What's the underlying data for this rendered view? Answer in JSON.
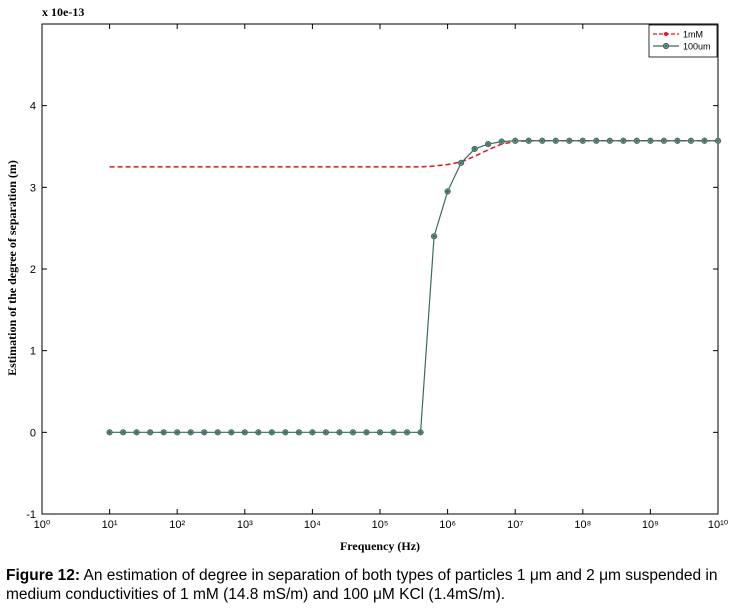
{
  "chart_data": {
    "type": "line",
    "multiplier_label": "x 10e-13",
    "xlabel": "Frequency (Hz)",
    "ylabel": "Estimation of the degree of separation (m)",
    "xscale": "log",
    "xlim": [
      1,
      10000000000
    ],
    "xticks": [
      {
        "value": 1,
        "label": "10⁰"
      },
      {
        "value": 10,
        "label": "10¹"
      },
      {
        "value": 100,
        "label": "10²"
      },
      {
        "value": 1000,
        "label": "10³"
      },
      {
        "value": 10000,
        "label": "10⁴"
      },
      {
        "value": 100000,
        "label": "10⁵"
      },
      {
        "value": 1000000,
        "label": "10⁶"
      },
      {
        "value": 10000000,
        "label": "10⁷"
      },
      {
        "value": 100000000,
        "label": "10⁸"
      },
      {
        "value": 1000000000,
        "label": "10⁹"
      },
      {
        "value": 10000000000,
        "label": "10¹⁰"
      }
    ],
    "ylim": [
      -1,
      5
    ],
    "yticks": [
      -1,
      0,
      1,
      2,
      3,
      4
    ],
    "legend": "upper right",
    "x": [
      10,
      15.85,
      25.12,
      39.81,
      63.1,
      100,
      158.5,
      251.2,
      398.1,
      631,
      1000,
      1585,
      2512,
      3981,
      6310,
      10000,
      15850,
      25120,
      39810,
      63100,
      100000,
      158500,
      251200,
      398100,
      631000,
      1000000,
      1585000,
      2512000,
      3981000,
      6310000,
      10000000,
      15850000,
      25120000,
      39810000,
      63100000,
      100000000,
      158500000,
      251200000,
      398100000,
      631000000,
      1000000000,
      1585000000,
      2512000000,
      3981000000,
      6310000000,
      10000000000
    ],
    "series": [
      {
        "name": "1mM",
        "color": "#e8141c",
        "line_style": "dashed",
        "marker": false,
        "values": [
          3.25,
          3.25,
          3.25,
          3.25,
          3.25,
          3.25,
          3.25,
          3.25,
          3.25,
          3.25,
          3.25,
          3.25,
          3.25,
          3.25,
          3.25,
          3.25,
          3.25,
          3.25,
          3.25,
          3.25,
          3.25,
          3.25,
          3.25,
          3.25,
          3.26,
          3.28,
          3.31,
          3.38,
          3.46,
          3.53,
          3.56,
          3.57,
          3.57,
          3.57,
          3.57,
          3.57,
          3.57,
          3.57,
          3.57,
          3.57,
          3.57,
          3.57,
          3.57,
          3.57,
          3.57,
          3.57
        ]
      },
      {
        "name": "100um",
        "color": "#3d6b5e",
        "line_style": "solid",
        "marker": true,
        "values": [
          0,
          0,
          0,
          0,
          0,
          0,
          0,
          0,
          0,
          0,
          0,
          0,
          0,
          0,
          0,
          0,
          0,
          0,
          0,
          0,
          0,
          0,
          0,
          0,
          2.4,
          2.95,
          3.3,
          3.47,
          3.53,
          3.56,
          3.57,
          3.57,
          3.57,
          3.57,
          3.57,
          3.57,
          3.57,
          3.57,
          3.57,
          3.57,
          3.57,
          3.57,
          3.57,
          3.57,
          3.57,
          3.57
        ]
      }
    ]
  },
  "caption": {
    "label": "Figure 12:",
    "text": "An estimation of degree in separation of both types of particles 1 μm and 2 μm suspended in medium conductivities of 1 mM (14.8 mS/m) and 100 μM KCl (1.4mS/m)."
  }
}
